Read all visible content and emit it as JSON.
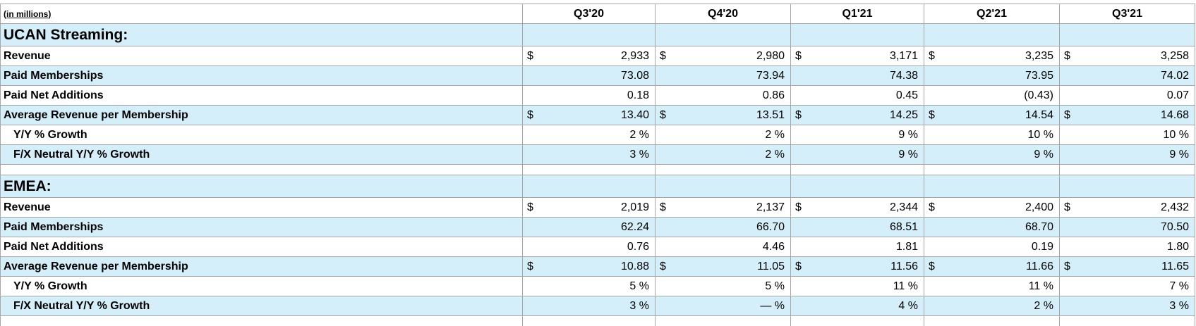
{
  "header": {
    "note": "(in millions)",
    "periods": [
      "Q3'20",
      "Q4'20",
      "Q1'21",
      "Q2'21",
      "Q3'21"
    ]
  },
  "sections": [
    {
      "title": "UCAN Streaming:",
      "rows": [
        {
          "label": "Revenue",
          "prefix": "$",
          "values": [
            "2,933",
            "2,980",
            "3,171",
            "3,235",
            "3,258"
          ]
        },
        {
          "label": "Paid Memberships",
          "values": [
            "73.08",
            "73.94",
            "74.38",
            "73.95",
            "74.02"
          ]
        },
        {
          "label": "Paid Net Additions",
          "values": [
            "0.18",
            "0.86",
            "0.45",
            "(0.43)",
            "0.07"
          ]
        },
        {
          "label": "Average Revenue per Membership",
          "prefix": "$",
          "values": [
            "13.40",
            "13.51",
            "14.25",
            "14.54",
            "14.68"
          ]
        },
        {
          "label": "Y/Y % Growth",
          "values": [
            "2 %",
            "2 %",
            "9 %",
            "10 %",
            "10 %"
          ]
        },
        {
          "label": "F/X Neutral Y/Y % Growth",
          "values": [
            "3 %",
            "2 %",
            "9 %",
            "9 %",
            "9 %"
          ]
        }
      ]
    },
    {
      "title": "EMEA:",
      "rows": [
        {
          "label": "Revenue",
          "prefix": "$",
          "values": [
            "2,019",
            "2,137",
            "2,344",
            "2,400",
            "2,432"
          ]
        },
        {
          "label": "Paid Memberships",
          "values": [
            "62.24",
            "66.70",
            "68.51",
            "68.70",
            "70.50"
          ]
        },
        {
          "label": "Paid Net Additions",
          "values": [
            "0.76",
            "4.46",
            "1.81",
            "0.19",
            "1.80"
          ]
        },
        {
          "label": "Average Revenue per Membership",
          "prefix": "$",
          "values": [
            "10.88",
            "11.05",
            "11.56",
            "11.66",
            "11.65"
          ]
        },
        {
          "label": "Y/Y % Growth",
          "values": [
            "5 %",
            "5 %",
            "11 %",
            "11 %",
            "7 %"
          ]
        },
        {
          "label": "F/X Neutral Y/Y % Growth",
          "values": [
            "3 %",
            "— %",
            "4 %",
            "2 %",
            "3 %"
          ]
        }
      ]
    }
  ]
}
